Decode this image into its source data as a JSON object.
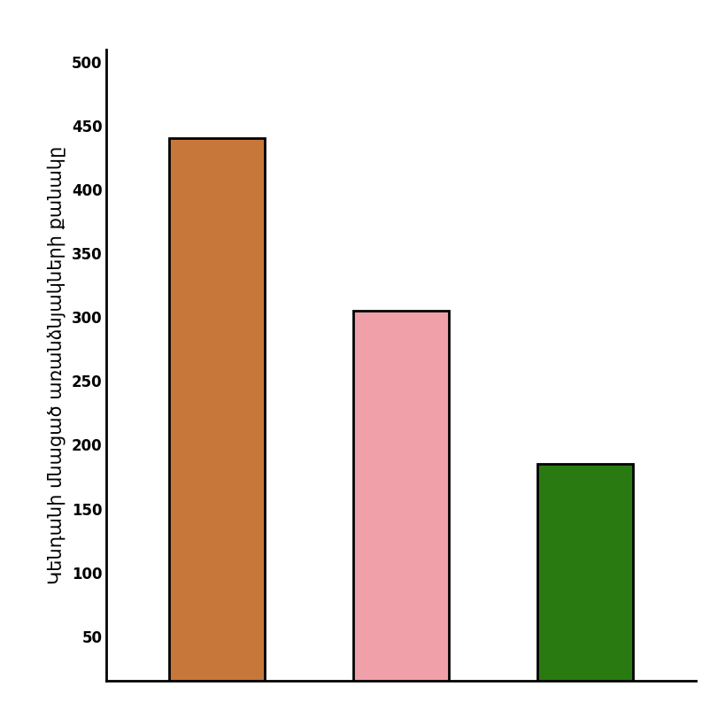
{
  "chart_data": {
    "type": "bar",
    "y_label": "Կենդանի մնացած առանձնյակների քանակը",
    "categories": [
      null,
      null,
      null
    ],
    "values": [
      440,
      305,
      185
    ],
    "colors": [
      "#c8773a",
      "#f0a0a8",
      "#2a7a12"
    ],
    "ylim": [
      15,
      510
    ],
    "yticks": [
      50,
      100,
      150,
      200,
      250,
      300,
      350,
      400,
      450,
      500
    ],
    "grid": false,
    "tick_labels": "y"
  }
}
